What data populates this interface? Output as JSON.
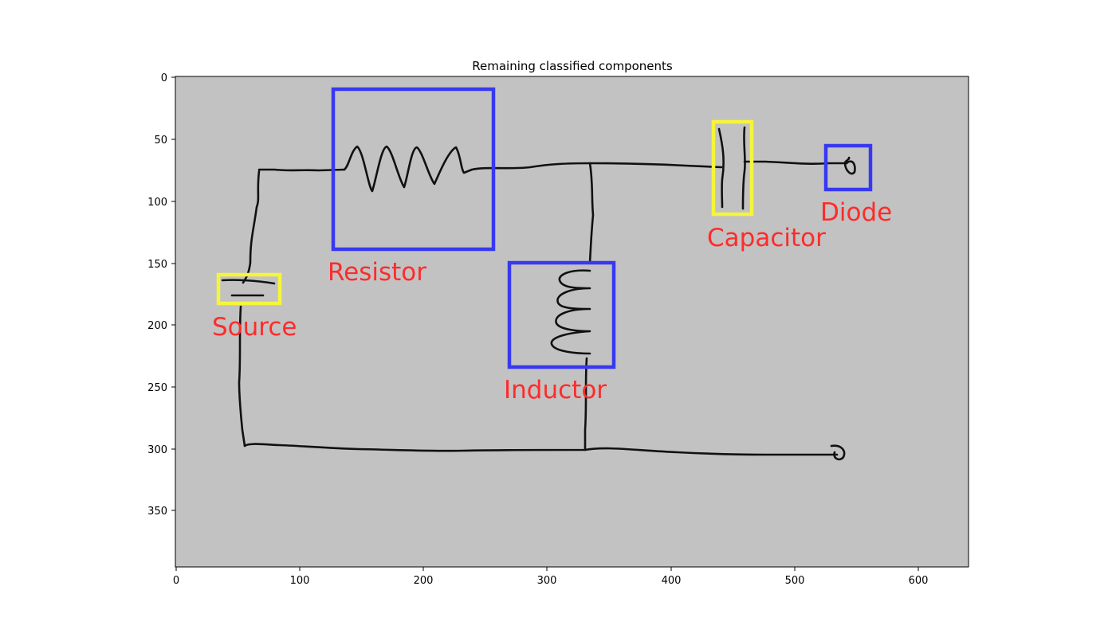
{
  "title": "Remaining classified components",
  "axes": {
    "x_ticks": [
      "0",
      "100",
      "200",
      "300",
      "400",
      "500",
      "600"
    ],
    "y_ticks": [
      "0",
      "50",
      "100",
      "150",
      "200",
      "250",
      "300",
      "350"
    ]
  },
  "image": {
    "background_color": "#c2c2c2",
    "wire_color": "#111111"
  },
  "components": [
    {
      "id": "resistor",
      "label": "Resistor",
      "box_color": "#3838f0"
    },
    {
      "id": "inductor",
      "label": "Inductor",
      "box_color": "#3838f0"
    },
    {
      "id": "capacitor",
      "label": "Capacitor",
      "box_color": "#f5f53a"
    },
    {
      "id": "diode",
      "label": "Diode",
      "box_color": "#3838f0"
    },
    {
      "id": "source",
      "label": "Source",
      "box_color": "#f5f53a"
    }
  ],
  "label_color": "#ff2b2b"
}
